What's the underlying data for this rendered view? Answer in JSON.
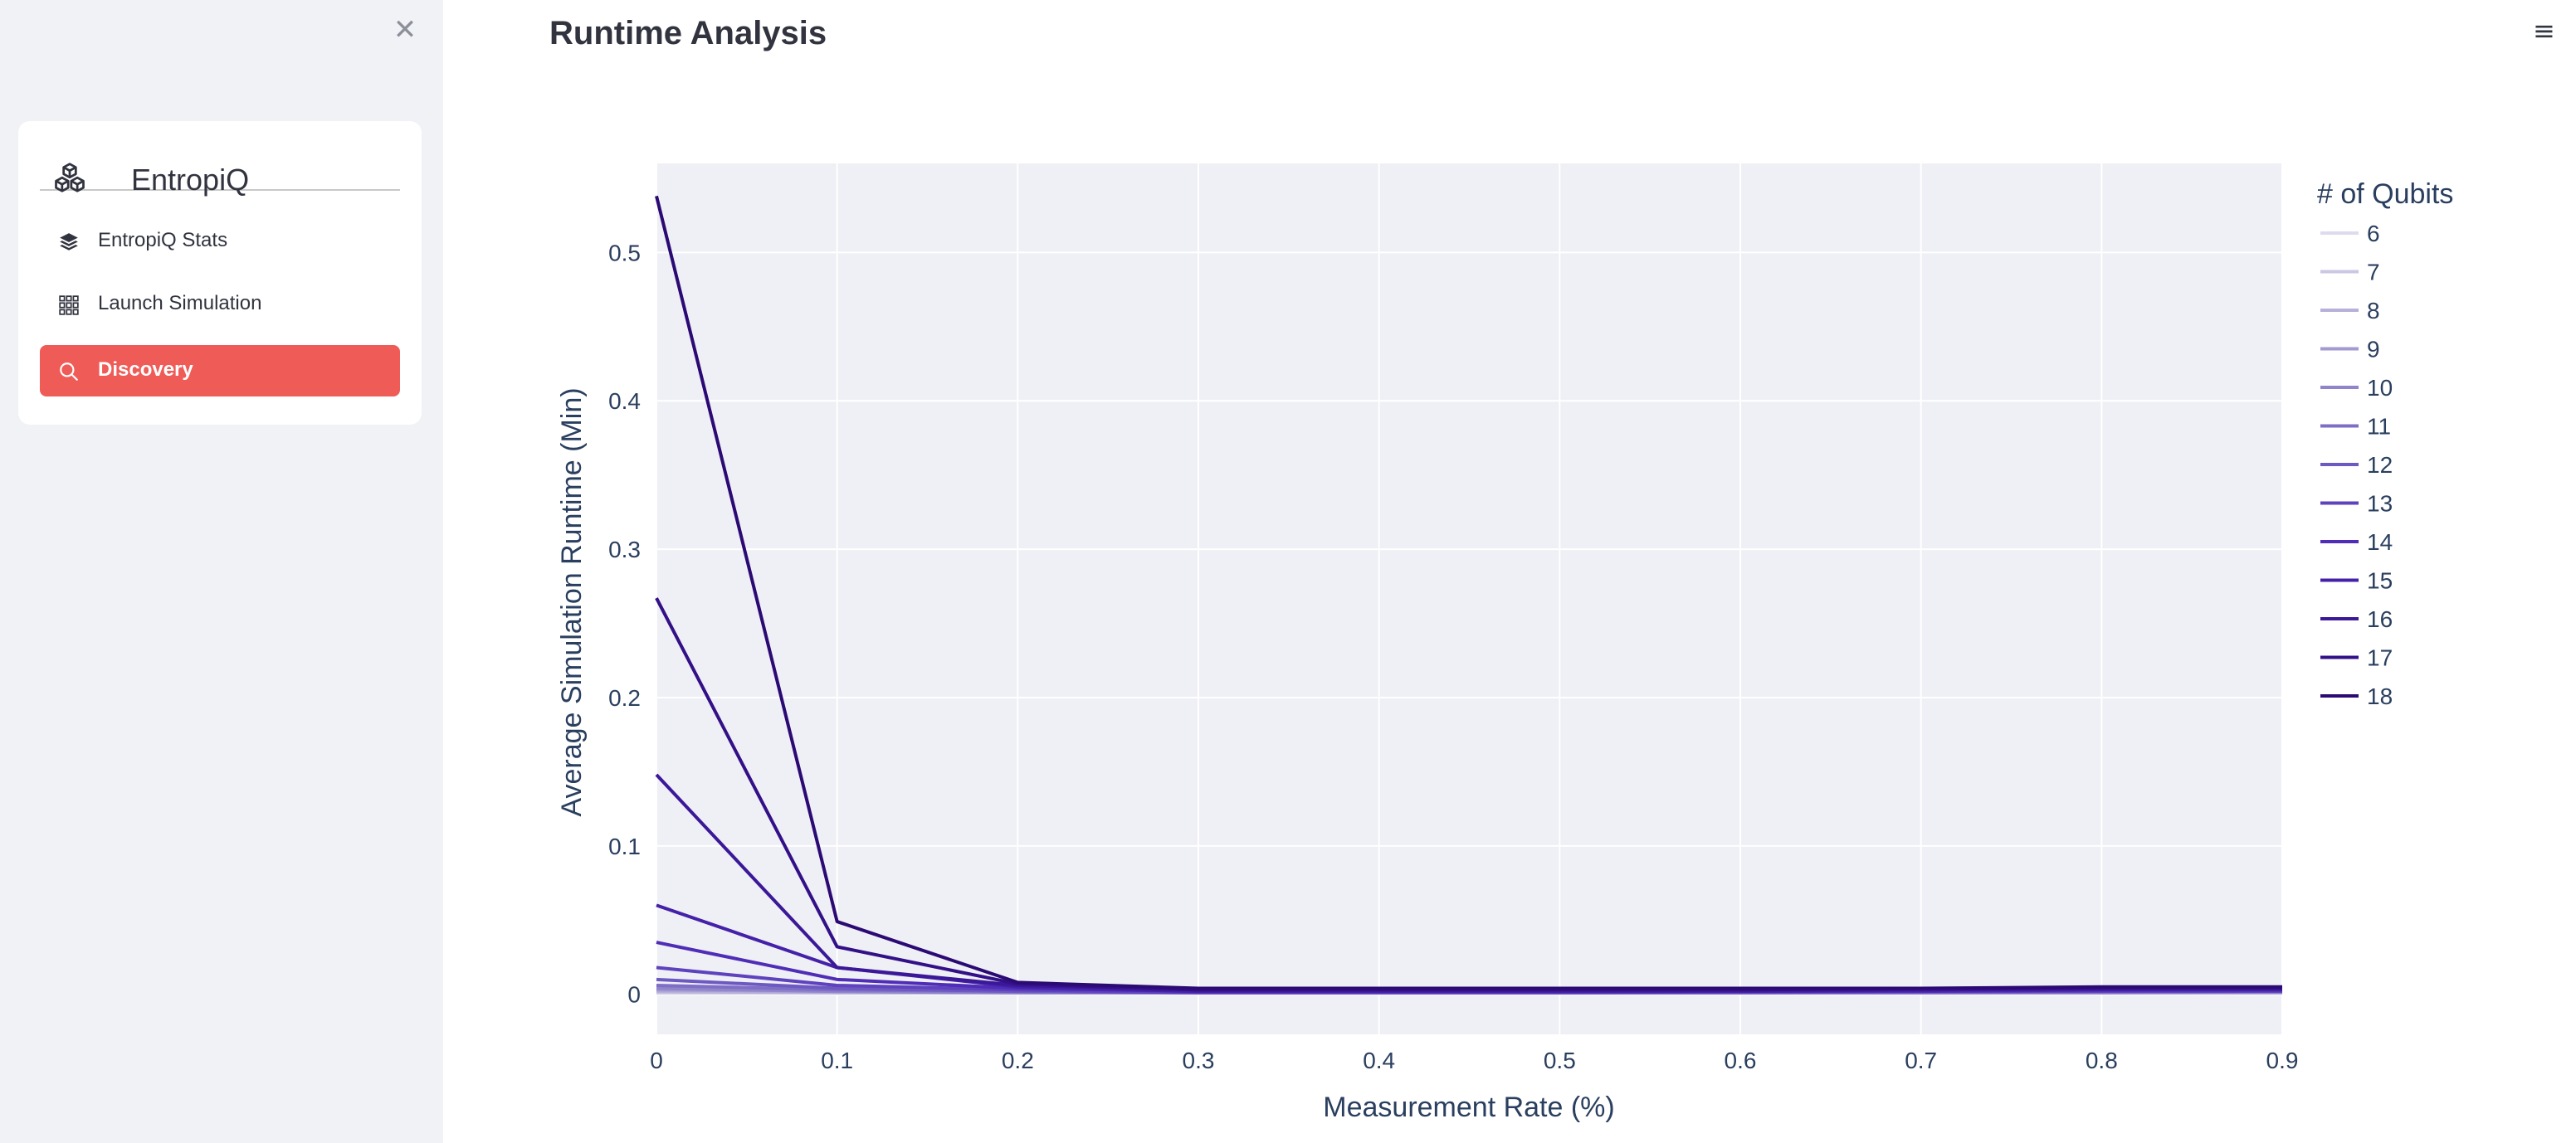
{
  "sidebar": {
    "close_icon": "✕",
    "brand": {
      "name": "EntropiQ",
      "icon": "cubes-icon"
    },
    "items": [
      {
        "label": "EntropiQ Stats",
        "icon": "layers-icon",
        "active": false
      },
      {
        "label": "Launch Simulation",
        "icon": "grid-icon",
        "active": false
      },
      {
        "label": "Discovery",
        "icon": "search-icon",
        "active": true
      }
    ],
    "accent_color": "#ef5b57"
  },
  "header": {
    "title": "Runtime Analysis",
    "menu_icon": "≡"
  },
  "chart_data": {
    "type": "line",
    "title": "",
    "xlabel": "Measurement Rate (%)",
    "ylabel": "Average Simulation Runtime (Min)",
    "legend_title": "# of Qubits",
    "legend_position": "right",
    "grid": true,
    "xlim": [
      0,
      0.9
    ],
    "ylim": [
      -0.027,
      0.56
    ],
    "x_ticks": [
      "0",
      "0.1",
      "0.2",
      "0.3",
      "0.4",
      "0.5",
      "0.6",
      "0.7",
      "0.8",
      "0.9"
    ],
    "y_ticks": [
      "0",
      "0.1",
      "0.2",
      "0.3",
      "0.4",
      "0.5"
    ],
    "x": [
      0,
      0.1,
      0.2,
      0.3,
      0.4,
      0.5,
      0.6,
      0.7,
      0.8,
      0.9
    ],
    "series": [
      {
        "name": "6",
        "color": "#dedbec",
        "values": [
          0.001,
          0.001,
          0.001,
          0.001,
          0.001,
          0.001,
          0.001,
          0.001,
          0.001,
          0.001
        ]
      },
      {
        "name": "7",
        "color": "#cbc6e2",
        "values": [
          0.001,
          0.001,
          0.001,
          0.001,
          0.001,
          0.001,
          0.001,
          0.001,
          0.001,
          0.001
        ]
      },
      {
        "name": "8",
        "color": "#b7b0da",
        "values": [
          0.002,
          0.001,
          0.001,
          0.001,
          0.001,
          0.001,
          0.001,
          0.001,
          0.001,
          0.001
        ]
      },
      {
        "name": "9",
        "color": "#a39ad2",
        "values": [
          0.003,
          0.002,
          0.001,
          0.001,
          0.001,
          0.001,
          0.001,
          0.001,
          0.001,
          0.001
        ]
      },
      {
        "name": "10",
        "color": "#9084cb",
        "values": [
          0.004,
          0.002,
          0.001,
          0.001,
          0.001,
          0.001,
          0.001,
          0.001,
          0.001,
          0.002
        ]
      },
      {
        "name": "11",
        "color": "#7f6ec6",
        "values": [
          0.006,
          0.003,
          0.002,
          0.001,
          0.001,
          0.001,
          0.001,
          0.001,
          0.002,
          0.002
        ]
      },
      {
        "name": "12",
        "color": "#6e58c2",
        "values": [
          0.01,
          0.004,
          0.002,
          0.001,
          0.001,
          0.001,
          0.001,
          0.002,
          0.002,
          0.002
        ]
      },
      {
        "name": "13",
        "color": "#5e42be",
        "values": [
          0.018,
          0.006,
          0.003,
          0.001,
          0.001,
          0.001,
          0.002,
          0.002,
          0.002,
          0.002
        ]
      },
      {
        "name": "14",
        "color": "#502db6",
        "values": [
          0.035,
          0.01,
          0.004,
          0.002,
          0.002,
          0.002,
          0.002,
          0.002,
          0.003,
          0.003
        ]
      },
      {
        "name": "15",
        "color": "#4421a8",
        "values": [
          0.06,
          0.018,
          0.005,
          0.002,
          0.002,
          0.002,
          0.002,
          0.003,
          0.003,
          0.003
        ]
      },
      {
        "name": "16",
        "color": "#3b1898",
        "values": [
          0.148,
          0.018,
          0.006,
          0.003,
          0.003,
          0.003,
          0.003,
          0.003,
          0.004,
          0.004
        ]
      },
      {
        "name": "17",
        "color": "#331087",
        "values": [
          0.267,
          0.032,
          0.007,
          0.003,
          0.003,
          0.003,
          0.003,
          0.004,
          0.004,
          0.004
        ]
      },
      {
        "name": "18",
        "color": "#2b0a74",
        "values": [
          0.538,
          0.049,
          0.008,
          0.004,
          0.004,
          0.004,
          0.004,
          0.004,
          0.005,
          0.005
        ]
      }
    ]
  }
}
